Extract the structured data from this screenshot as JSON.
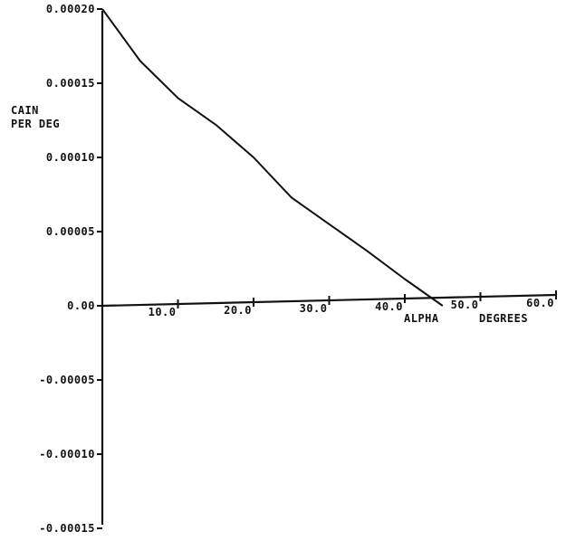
{
  "chart_data": {
    "type": "line",
    "title": "",
    "ylabel_line1": "CAIN",
    "ylabel_line2": "PER DEG",
    "xlabel_line1": "ALPHA",
    "xlabel_line2": "DEGREES",
    "xlim": [
      0,
      60
    ],
    "ylim": [
      -0.00015,
      0.0002
    ],
    "grid": false,
    "x_ticks": [
      {
        "value": 10,
        "label": "10.0"
      },
      {
        "value": 20,
        "label": "20.0"
      },
      {
        "value": 30,
        "label": "30.0"
      },
      {
        "value": 40,
        "label": "40.0"
      },
      {
        "value": 50,
        "label": "50.0"
      },
      {
        "value": 60,
        "label": "60.0"
      }
    ],
    "y_ticks": [
      {
        "value": 0.0002,
        "label": "0.00020"
      },
      {
        "value": 0.00015,
        "label": "0.00015"
      },
      {
        "value": 0.0001,
        "label": "0.00010"
      },
      {
        "value": 5e-05,
        "label": "0.00005"
      },
      {
        "value": 0,
        "label": "0.00"
      },
      {
        "value": -5e-05,
        "label": "-0.00005"
      },
      {
        "value": -0.0001,
        "label": "-0.00010"
      },
      {
        "value": -0.00015,
        "label": "-0.00015"
      }
    ],
    "series": [
      {
        "x": [
          0,
          5,
          10,
          15,
          20,
          25,
          30,
          35,
          40,
          45
        ],
        "y": [
          0.0002,
          0.000165,
          0.00014,
          0.000122,
          0.0001,
          7.3e-05,
          5.5e-05,
          3.7e-05,
          1.8e-05,
          0.0
        ]
      }
    ],
    "line_color": "#111111"
  }
}
